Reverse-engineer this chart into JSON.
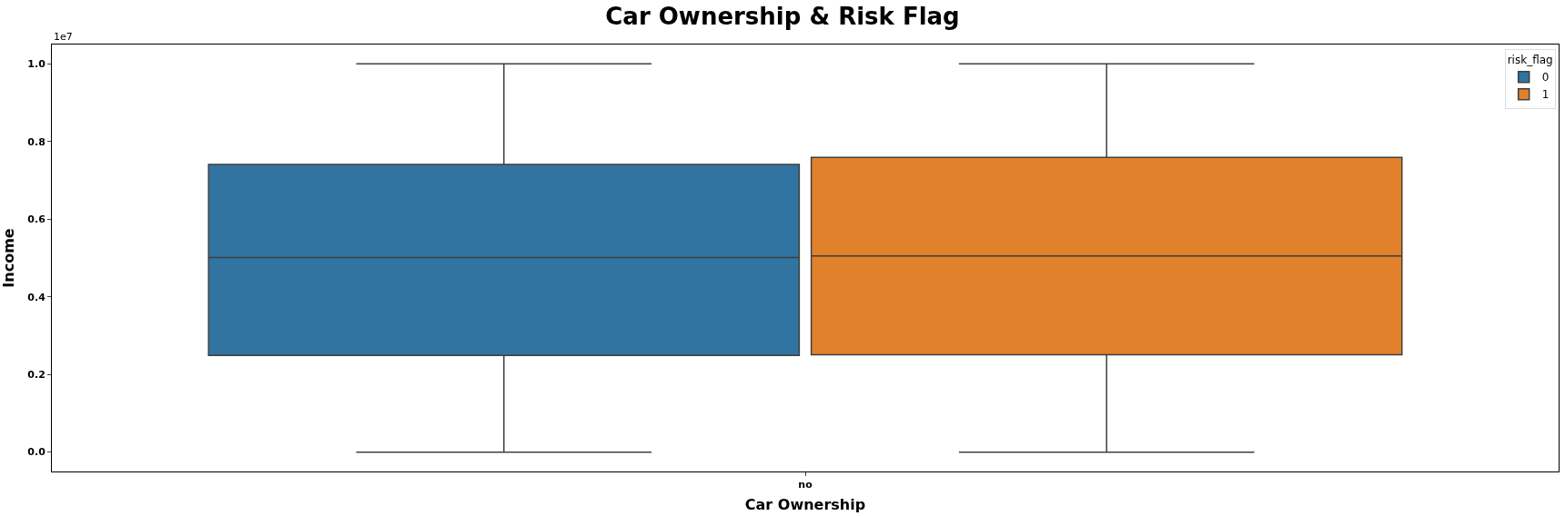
{
  "chart_data": {
    "type": "box",
    "title": "Car Ownership & Risk Flag",
    "xlabel": "Car Ownership",
    "ylabel": "Income",
    "legend_title": "risk_flag",
    "categories": [
      "no"
    ],
    "series": [
      {
        "name": "0",
        "color": "#3274a1",
        "boxes": [
          {
            "low": 0,
            "q1": 0.249,
            "median": 0.501,
            "q3": 0.741,
            "high": 1.0
          }
        ]
      },
      {
        "name": "1",
        "color": "#e1812c",
        "boxes": [
          {
            "low": 0,
            "q1": 0.251,
            "median": 0.505,
            "q3": 0.759,
            "high": 1.0
          }
        ]
      }
    ],
    "ylim": [
      -0.05,
      1.05
    ],
    "yticks": [
      {
        "value": 0,
        "label": "0.0"
      },
      0.2,
      0.4,
      0.6,
      0.8,
      {
        "value": 1,
        "label": "1.0"
      }
    ],
    "annotations": [
      "1e7"
    ],
    "grid": false,
    "legend": "top right"
  }
}
